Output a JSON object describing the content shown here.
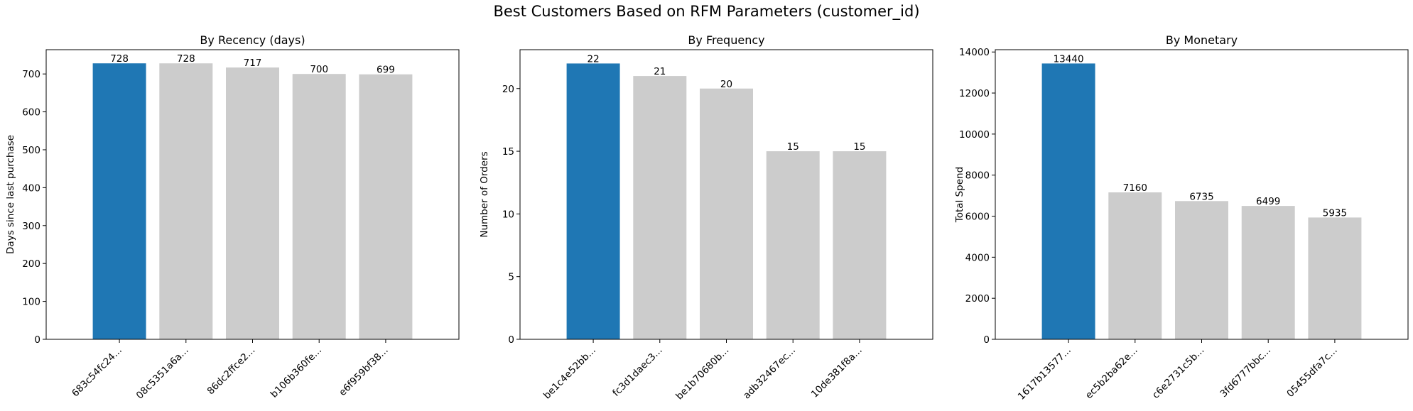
{
  "figure": {
    "suptitle": "Best Customers Based on RFM Parameters (customer_id)",
    "highlight_color": "#1f77b4",
    "other_color": "#cccccc"
  },
  "chart_data": [
    {
      "type": "bar",
      "title": "By Recency (days)",
      "xlabel": "",
      "ylabel": "Days since last purchase",
      "categories": [
        "683c54fc24...",
        "08c5351a6a...",
        "86dc2ffce2...",
        "b106b360fe...",
        "e6f959bf38..."
      ],
      "values": [
        728,
        728,
        717,
        700,
        699
      ],
      "data_labels": [
        "728",
        "728",
        "717",
        "700",
        "699"
      ],
      "ylim": [
        0,
        764
      ],
      "yticks": [
        0,
        100,
        200,
        300,
        400,
        500,
        600,
        700
      ],
      "grid": false,
      "highlight_index": 0
    },
    {
      "type": "bar",
      "title": "By Frequency",
      "xlabel": "",
      "ylabel": "Number of Orders",
      "categories": [
        "be1c4e52bb...",
        "fc3d1daec3...",
        "be1b70680b...",
        "adb32467ec...",
        "10de381f8a..."
      ],
      "values": [
        22,
        21,
        20,
        15,
        15
      ],
      "data_labels": [
        "22",
        "21",
        "20",
        "15",
        "15"
      ],
      "ylim": [
        0,
        23.1
      ],
      "yticks": [
        0,
        5,
        10,
        15,
        20
      ],
      "grid": false,
      "highlight_index": 0
    },
    {
      "type": "bar",
      "title": "By Monetary",
      "xlabel": "",
      "ylabel": "Total Spend",
      "categories": [
        "1617b13577...",
        "ec5b2ba62e...",
        "c6e2731c5b...",
        "3fd6777bbc...",
        "05455dfa7c..."
      ],
      "values": [
        13440,
        7160,
        6735,
        6499,
        5935
      ],
      "data_labels": [
        "13440",
        "7160",
        "6735",
        "6499",
        "5935"
      ],
      "ylim": [
        0,
        14112
      ],
      "yticks": [
        0,
        2000,
        4000,
        6000,
        8000,
        10000,
        12000,
        14000
      ],
      "grid": false,
      "highlight_index": 0
    }
  ]
}
